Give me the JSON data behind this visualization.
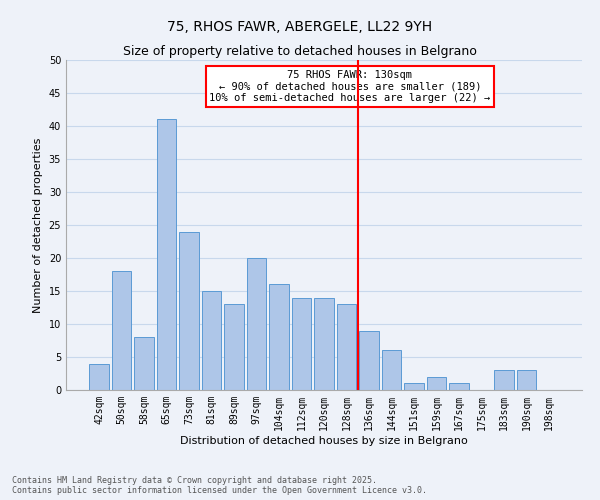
{
  "title": "75, RHOS FAWR, ABERGELE, LL22 9YH",
  "subtitle": "Size of property relative to detached houses in Belgrano",
  "xlabel": "Distribution of detached houses by size in Belgrano",
  "ylabel": "Number of detached properties",
  "bar_labels": [
    "42sqm",
    "50sqm",
    "58sqm",
    "65sqm",
    "73sqm",
    "81sqm",
    "89sqm",
    "97sqm",
    "104sqm",
    "112sqm",
    "120sqm",
    "128sqm",
    "136sqm",
    "144sqm",
    "151sqm",
    "159sqm",
    "167sqm",
    "175sqm",
    "183sqm",
    "190sqm",
    "198sqm"
  ],
  "bar_values": [
    4,
    18,
    8,
    41,
    24,
    15,
    13,
    20,
    16,
    14,
    14,
    13,
    9,
    6,
    1,
    2,
    1,
    0,
    3,
    3,
    0
  ],
  "bar_color": "#aec6e8",
  "bar_edge_color": "#5b9bd5",
  "vline_pos": 11.5,
  "vline_color": "red",
  "annotation_text": "75 RHOS FAWR: 130sqm\n← 90% of detached houses are smaller (189)\n10% of semi-detached houses are larger (22) →",
  "annotation_box_color": "white",
  "annotation_box_edge_color": "red",
  "ylim": [
    0,
    50
  ],
  "yticks": [
    0,
    5,
    10,
    15,
    20,
    25,
    30,
    35,
    40,
    45,
    50
  ],
  "grid_color": "#c8d8ec",
  "background_color": "#eef2f9",
  "footer_line1": "Contains HM Land Registry data © Crown copyright and database right 2025.",
  "footer_line2": "Contains public sector information licensed under the Open Government Licence v3.0.",
  "title_fontsize": 10,
  "subtitle_fontsize": 9,
  "axis_label_fontsize": 8,
  "tick_fontsize": 7,
  "annotation_fontsize": 7.5,
  "footer_fontsize": 6
}
